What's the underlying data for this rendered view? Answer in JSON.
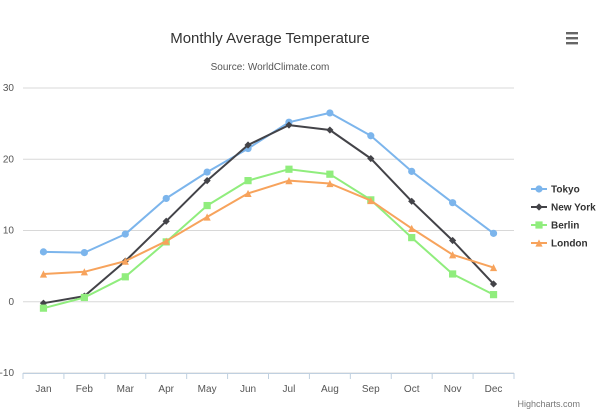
{
  "menu": {
    "icon": "menu-icon"
  },
  "credits": "Highcharts.com",
  "colors": {
    "Tokyo": "#7cb5ec",
    "New York": "#434348",
    "Berlin": "#90ed7d",
    "London": "#f7a35c"
  },
  "chart_data": {
    "type": "line",
    "title": "Monthly Average Temperature",
    "subtitle": "Source: WorldClimate.com",
    "categories": [
      "Jan",
      "Feb",
      "Mar",
      "Apr",
      "May",
      "Jun",
      "Jul",
      "Aug",
      "Sep",
      "Oct",
      "Nov",
      "Dec"
    ],
    "ylim": [
      -10,
      30
    ],
    "yticks": [
      -10,
      0,
      10,
      20,
      30
    ],
    "grid": true,
    "legend": "right",
    "series": [
      {
        "name": "Tokyo",
        "marker": "circle",
        "values": [
          7.0,
          6.9,
          9.5,
          14.5,
          18.2,
          21.5,
          25.2,
          26.5,
          23.3,
          18.3,
          13.9,
          9.6
        ]
      },
      {
        "name": "New York",
        "marker": "diamond",
        "values": [
          -0.2,
          0.8,
          5.7,
          11.3,
          17.0,
          22.0,
          24.8,
          24.1,
          20.1,
          14.1,
          8.6,
          2.5
        ]
      },
      {
        "name": "Berlin",
        "marker": "square",
        "values": [
          -0.9,
          0.6,
          3.5,
          8.4,
          13.5,
          17.0,
          18.6,
          17.9,
          14.3,
          9.0,
          3.9,
          1.0
        ]
      },
      {
        "name": "London",
        "marker": "triangle",
        "values": [
          3.9,
          4.2,
          5.7,
          8.5,
          11.9,
          15.2,
          17.0,
          16.6,
          14.2,
          10.3,
          6.6,
          4.8
        ]
      }
    ]
  }
}
